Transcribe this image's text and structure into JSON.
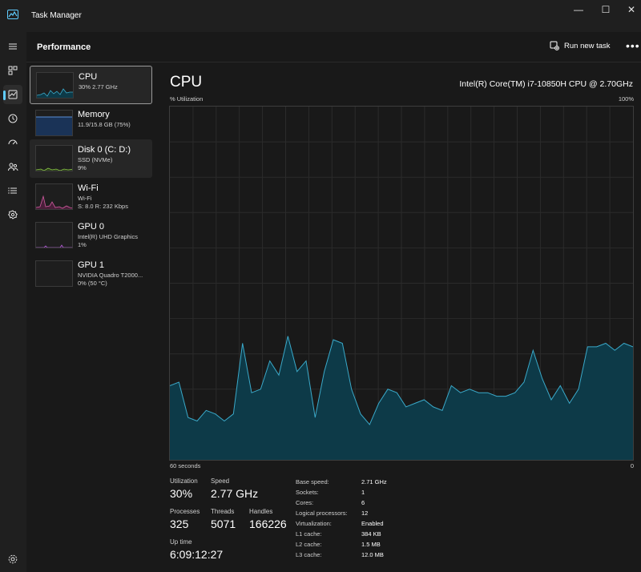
{
  "window": {
    "title": "Task Manager",
    "controls": [
      "—",
      "☐",
      "✕"
    ]
  },
  "rail": {
    "items": [
      "menu-icon",
      "processes-icon",
      "performance-icon",
      "app-history-icon",
      "startup-apps-icon",
      "users-icon",
      "details-icon",
      "services-icon"
    ],
    "settings": "settings-icon",
    "active_index": 2
  },
  "header": {
    "title": "Performance",
    "run_task_label": "Run new task",
    "more_label": "•••"
  },
  "devices": [
    {
      "name": "CPU",
      "line1": "30%  2.77 GHz",
      "line2": "",
      "color": "#3aa9c9"
    },
    {
      "name": "Memory",
      "line1": "11.9/15.8 GB (75%)",
      "line2": "",
      "color": "#5b8fd6"
    },
    {
      "name": "Disk 0 (C: D:)",
      "line1": "SSD (NVMe)",
      "line2": "9%",
      "color": "#8ac34a"
    },
    {
      "name": "Wi-Fi",
      "line1": "Wi-Fi",
      "line2": "S: 8.0  R: 232 Kbps",
      "color": "#d05ca0"
    },
    {
      "name": "GPU 0",
      "line1": "Intel(R) UHD Graphics",
      "line2": "1%",
      "color": "#b060d0"
    },
    {
      "name": "GPU 1",
      "line1": "NVIDIA Quadro T2000...",
      "line2": "0%  (50 °C)",
      "color": "#b060d0"
    }
  ],
  "cpu": {
    "title": "CPU",
    "model": "Intel(R) Core(TM) i7-10850H CPU @ 2.70GHz",
    "y_label": "% Utilization",
    "y_max_label": "100%",
    "x_left_label": "60 seconds",
    "x_right_label": "0",
    "line_color": "#3aa9c9",
    "fill_color": "#0d3a48",
    "history": [
      21,
      22,
      12,
      11,
      14,
      13,
      11,
      13,
      33,
      19,
      20,
      28,
      24,
      35,
      25,
      28,
      12,
      25,
      34,
      33,
      20,
      13,
      10,
      16,
      20,
      19,
      15,
      16,
      17,
      15,
      14,
      21,
      19,
      20,
      19,
      19,
      18,
      18,
      19,
      22,
      31,
      23,
      17,
      21,
      16,
      20,
      32,
      32,
      33,
      31,
      33,
      32
    ]
  },
  "stats": {
    "utilization": {
      "label": "Utilization",
      "value": "30%"
    },
    "speed": {
      "label": "Speed",
      "value": "2.77 GHz"
    },
    "processes": {
      "label": "Processes",
      "value": "325"
    },
    "threads": {
      "label": "Threads",
      "value": "5071"
    },
    "handles": {
      "label": "Handles",
      "value": "166226"
    },
    "uptime": {
      "label": "Up time",
      "value": "6:09:12:27"
    }
  },
  "specs": [
    {
      "label": "Base speed:",
      "value": "2.71 GHz"
    },
    {
      "label": "Sockets:",
      "value": "1"
    },
    {
      "label": "Cores:",
      "value": "6"
    },
    {
      "label": "Logical processors:",
      "value": "12"
    },
    {
      "label": "Virtualization:",
      "value": "Enabled"
    },
    {
      "label": "L1 cache:",
      "value": "384 KB"
    },
    {
      "label": "L2 cache:",
      "value": "1.5 MB"
    },
    {
      "label": "L3 cache:",
      "value": "12.0 MB"
    }
  ]
}
